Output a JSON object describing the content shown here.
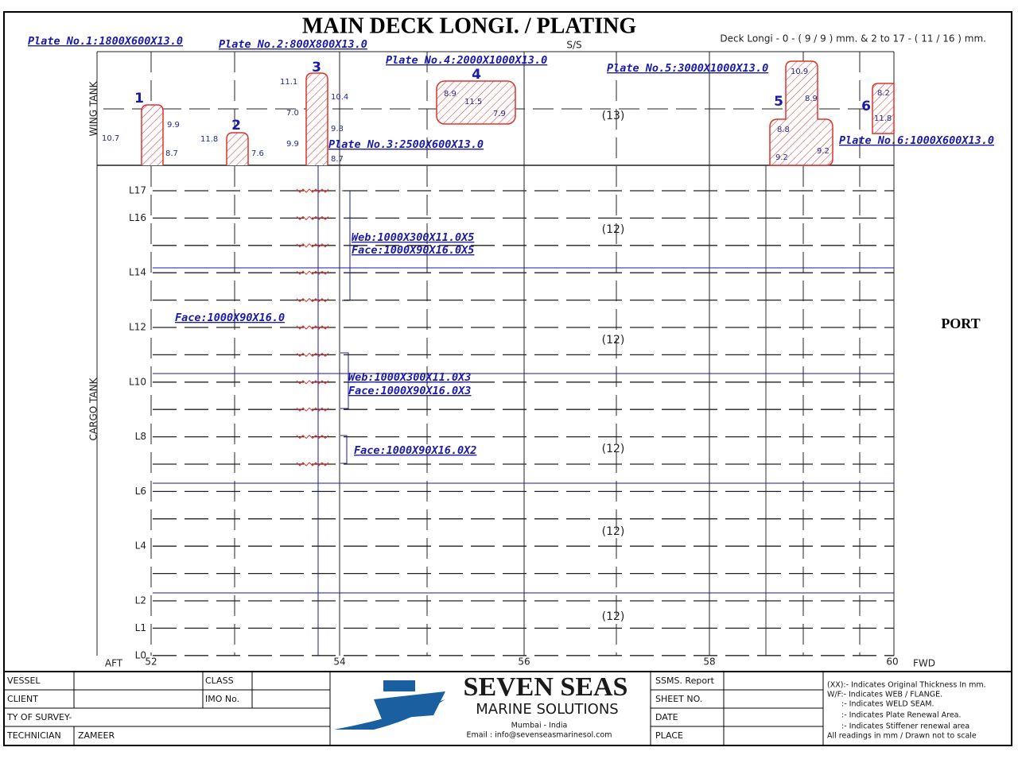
{
  "header": {
    "title": "MAIN DECK  LONGI. / PLATING",
    "ss": "S/S",
    "deck_note": "Deck Longi - 0 - ( 9 / 9 ) mm. & 2 to 17 - ( 11 / 16 ) mm."
  },
  "plate_labels": [
    "Plate No.1:1800X600X13.0",
    "Plate No.2:800X800X13.0",
    "Plate No.3:2500X600X13.0",
    "Plate No.4:2000X1000X13.0",
    "Plate No.5:3000X1000X13.0",
    "Plate No.6:1000X600X13.0"
  ],
  "plates": [
    {
      "number": "1",
      "readings": [
        "10.7",
        "9.9",
        "8.7"
      ]
    },
    {
      "number": "2",
      "readings": [
        "11.8",
        "7.6"
      ]
    },
    {
      "number": "3",
      "readings": [
        "11.1",
        "10.4",
        "7.0",
        "9.8",
        "9.9",
        "8.7"
      ]
    },
    {
      "number": "4",
      "readings": [
        "8.9",
        "11.5",
        "7.9"
      ]
    },
    {
      "number": "5",
      "readings": [
        "10.9",
        "8.9",
        "8.8",
        "9.2",
        "9.2"
      ]
    },
    {
      "number": "6",
      "readings": [
        "8.2",
        "11.8"
      ]
    }
  ],
  "zones": {
    "wing": "WING TANK",
    "cargo": "CARGO TANK",
    "side": "PORT",
    "aft": "AFT",
    "fwd": "FWD"
  },
  "frames": [
    "52",
    "54",
    "56",
    "58",
    "60"
  ],
  "longitudinals": [
    "L17",
    "L16",
    "L14",
    "L12",
    "L10",
    "L8",
    "L6",
    "L4",
    "L2",
    "L1",
    "L0"
  ],
  "compartments": [
    "(13)",
    "(12)",
    "(12)",
    "(12)",
    "(12)",
    "(12)"
  ],
  "stiffener_notes": [
    "Web:1000X300X11.0X5",
    "Face:1000X90X16.0X5",
    "Face:1000X90X16.0",
    "Web:1000X300X11.0X3",
    "Face:1000X90X16.0X3",
    "Face:1000X90X16.0X2"
  ],
  "footer": {
    "vessel": "VESSEL",
    "client": "CLIENT",
    "survey": "TY OF SURVEY-",
    "technician": "TECHNICIAN",
    "technician_name": "ZAMEER",
    "class": "CLASS",
    "imo": "IMO No.",
    "company": "SEVEN SEAS",
    "company_sub": "MARINE SOLUTIONS",
    "location": "Mumbai - India",
    "email": "Email : info@sevenseasmarinesol.com",
    "report": "SSMS. Report",
    "sheet": "SHEET NO.",
    "date": "DATE",
    "place": "PLACE",
    "legend": [
      "(XX):- Indicates Original Thickness In mm.",
      "W/F:- Indicates WEB / FLANGE.",
      ":- Indicates WELD SEAM.",
      ":- Indicates Plate Renewal Area.",
      ":- Indicates Stiffener renewal area",
      "All readings in mm / Drawn not to scale"
    ]
  }
}
